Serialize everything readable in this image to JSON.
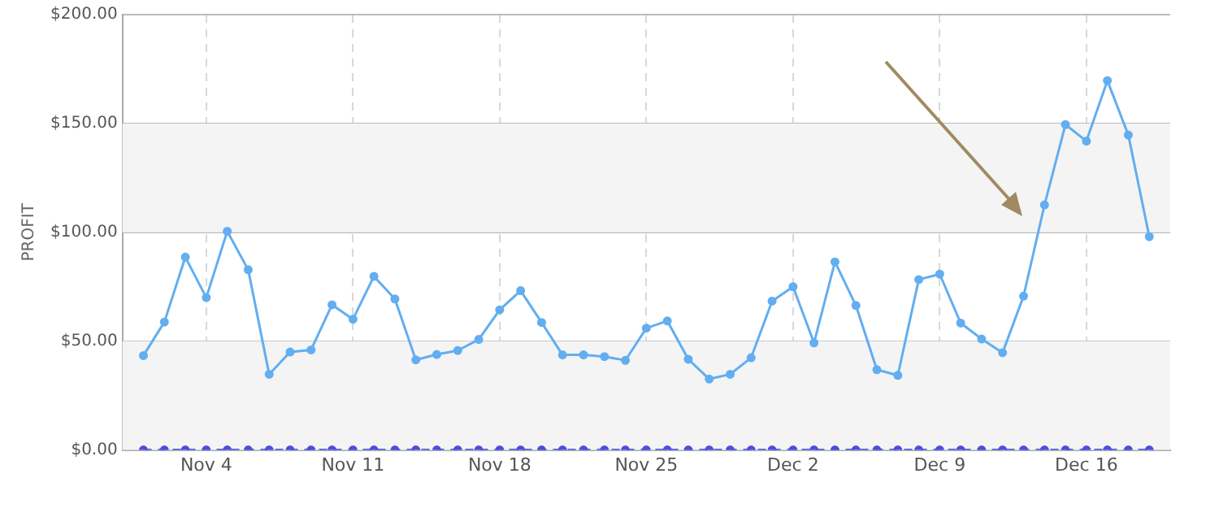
{
  "chart_data": {
    "type": "line",
    "ylabel": "PROFIT",
    "x": [
      "--11-01",
      "--11-02",
      "--11-03",
      "--11-04",
      "--11-05",
      "--11-06",
      "--11-07",
      "--11-08",
      "--11-09",
      "--11-10",
      "--11-11",
      "--11-12",
      "--11-13",
      "--11-14",
      "--11-15",
      "--11-16",
      "--11-17",
      "--11-18",
      "--11-19",
      "--11-20",
      "--11-21",
      "--11-22",
      "--11-23",
      "--11-24",
      "--11-25",
      "--11-26",
      "--11-27",
      "--11-28",
      "--11-29",
      "--11-30",
      "--12-01",
      "--12-02",
      "--12-03",
      "--12-04",
      "--12-05",
      "--12-06",
      "--12-07",
      "--12-08",
      "--12-09",
      "--12-10",
      "--12-11",
      "--12-12",
      "--12-13",
      "--12-14",
      "--12-15",
      "--12-16",
      "--12-17",
      "--12-18",
      "--12-19"
    ],
    "series": [
      {
        "color": "#4a4ee0",
        "line_style": "dashed",
        "values": [
          0,
          0,
          0,
          0,
          0,
          0,
          0,
          0,
          0,
          0,
          0,
          0,
          0,
          0,
          0,
          0,
          0,
          0,
          0,
          0,
          0,
          0,
          0,
          0,
          0,
          0,
          0,
          0,
          0,
          0,
          0,
          0,
          0,
          0,
          0,
          0,
          0,
          0,
          0,
          0,
          0,
          0,
          0,
          0,
          0,
          0,
          0,
          0,
          0
        ]
      },
      {
        "color": "#62aef0",
        "line_style": "solid",
        "values": [
          43.4,
          58.8,
          88.6,
          70,
          100.5,
          82.8,
          34.8,
          45,
          46,
          66.7,
          60.1,
          79.8,
          69.4,
          41.4,
          43.9,
          45.7,
          50.8,
          64.4,
          73.2,
          58.6,
          43.7,
          43.7,
          42.9,
          41.2,
          56,
          59.3,
          41.7,
          32.6,
          34.8,
          42.4,
          68.4,
          75,
          49.2,
          86.4,
          66.4,
          36.9,
          34.3,
          78.3,
          80.8,
          58.3,
          51,
          44.7,
          70.7,
          112.6,
          149.5,
          141.9,
          169.7,
          144.7,
          98
        ]
      }
    ],
    "xlim": [
      "--10-31",
      "--12-20"
    ],
    "xticks": [
      {
        "value": "--11-04",
        "label": "Nov 4"
      },
      {
        "value": "--11-11",
        "label": "Nov 11"
      },
      {
        "value": "--11-18",
        "label": "Nov 18"
      },
      {
        "value": "--11-25",
        "label": "Nov 25"
      },
      {
        "value": "--12-02",
        "label": "Dec 2"
      },
      {
        "value": "--12-09",
        "label": "Dec 9"
      },
      {
        "value": "--12-16",
        "label": "Dec 16"
      }
    ],
    "ylim": [
      0,
      200
    ],
    "yticks": [
      {
        "value": 0,
        "label": "$0.00"
      },
      {
        "value": 50,
        "label": "$50.00"
      },
      {
        "value": 100,
        "label": "$100.00"
      },
      {
        "value": 150,
        "label": "$150.00"
      },
      {
        "value": 200,
        "label": "$200.00"
      }
    ],
    "bands": [
      {
        "axis": "y",
        "from": 0,
        "to": 50,
        "color": "#f4f4f4"
      },
      {
        "axis": "y",
        "from": 100,
        "to": 150,
        "color": "#f4f4f4"
      }
    ],
    "grid": true,
    "marker": "circle",
    "legend": false
  }
}
